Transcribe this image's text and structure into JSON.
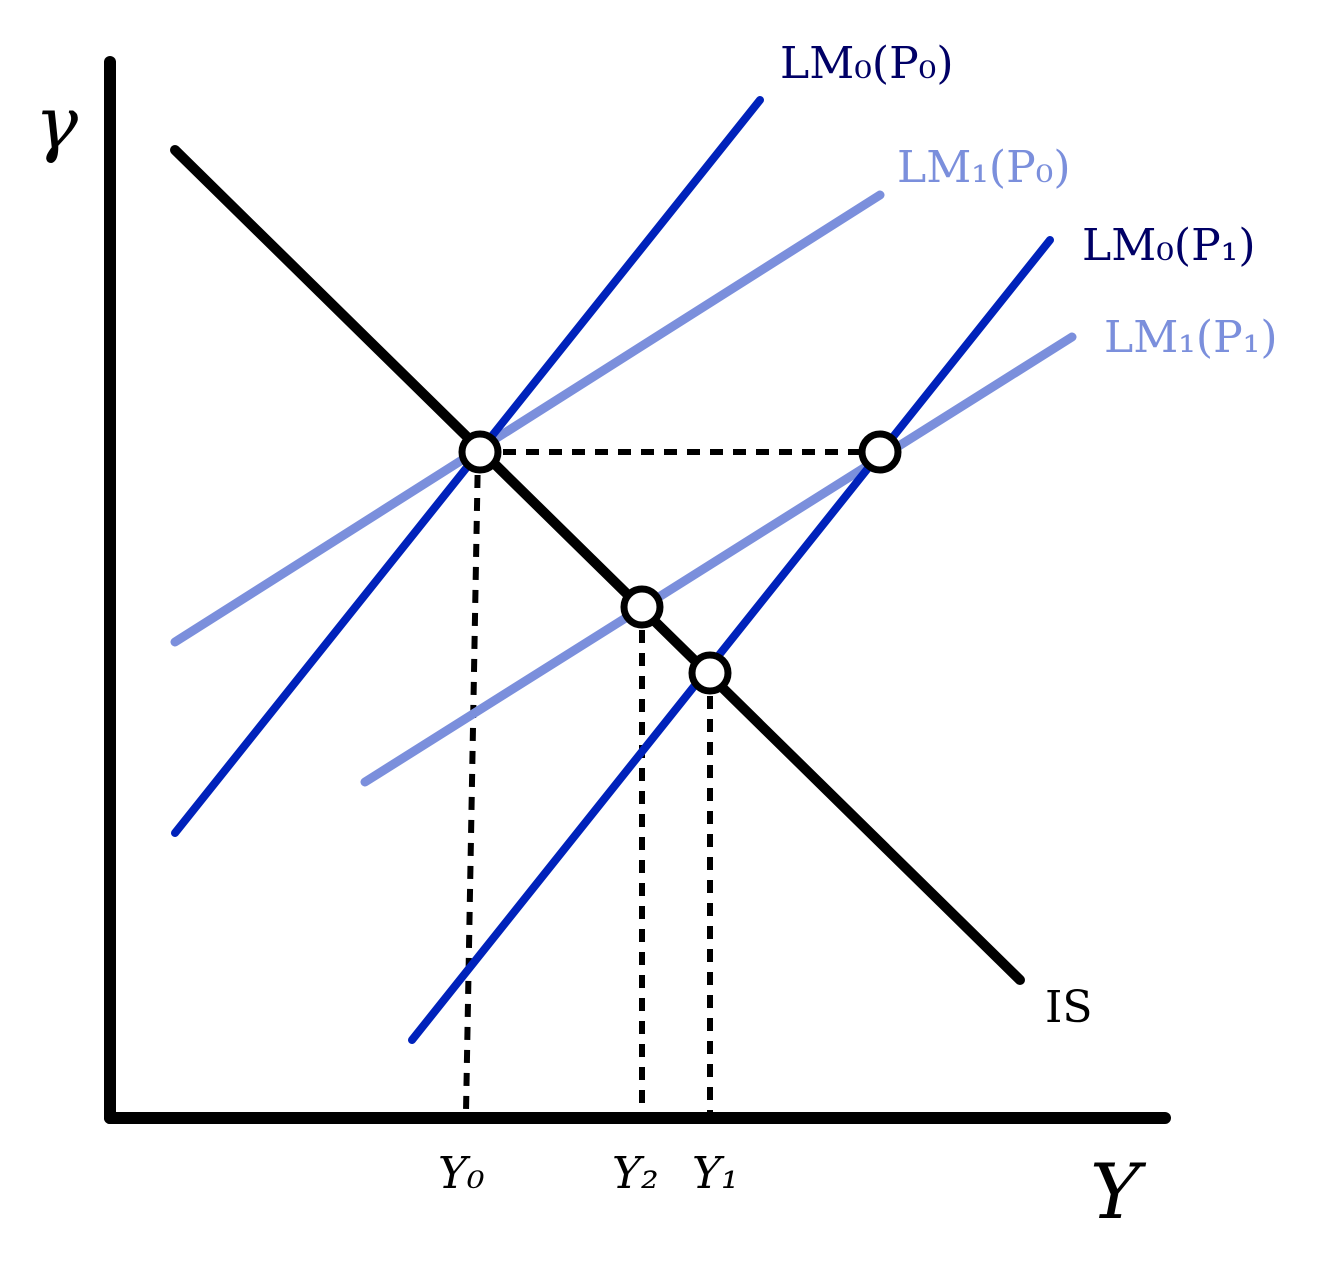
{
  "axes": {
    "y_label": "γ",
    "x_label": "Y"
  },
  "curves": [
    {
      "label": "IS"
    },
    {
      "label": "LM₀(P₀)"
    },
    {
      "label": "LM₁(P₀)"
    },
    {
      "label": "LM₀(P₁)"
    },
    {
      "label": "LM₁(P₁)"
    }
  ],
  "output_levels": [
    "Y₀",
    "Y₂",
    "Y₁"
  ]
}
